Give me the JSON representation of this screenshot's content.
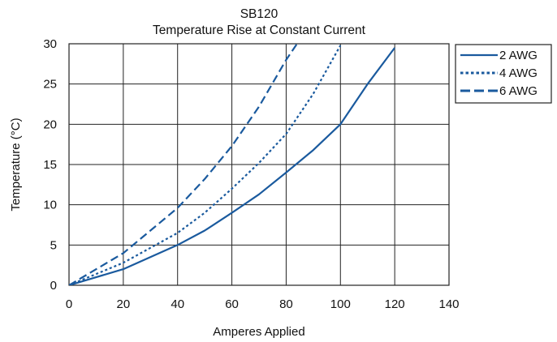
{
  "chart_data": {
    "type": "line",
    "title": "SB120",
    "subtitle": "Temperature Rise at Constant Current",
    "xlabel": "Amperes Applied",
    "ylabel": "Temperature (°C)",
    "xlim": [
      0,
      140
    ],
    "ylim": [
      0,
      30
    ],
    "x_ticks": [
      0,
      20,
      40,
      60,
      80,
      100,
      120,
      140
    ],
    "y_ticks": [
      0,
      5,
      10,
      15,
      20,
      25,
      30
    ],
    "grid": true,
    "legend_position": "right",
    "line_color": "#1a5a9e",
    "series": [
      {
        "name": "2 AWG",
        "dash": "solid",
        "x": [
          0,
          20,
          40,
          50,
          60,
          70,
          80,
          90,
          100,
          110,
          120
        ],
        "y": [
          0,
          2,
          5,
          6.8,
          9,
          11.3,
          14,
          16.8,
          20,
          25,
          29.5
        ]
      },
      {
        "name": "4 AWG",
        "dash": "dotted",
        "x": [
          0,
          20,
          40,
          50,
          60,
          70,
          80,
          90,
          100
        ],
        "y": [
          0,
          2.8,
          6.5,
          9,
          12,
          15.2,
          18.8,
          23.8,
          29.8
        ]
      },
      {
        "name": "6 AWG",
        "dash": "dashed",
        "x": [
          0,
          20,
          40,
          50,
          60,
          70,
          80,
          84
        ],
        "y": [
          0,
          4,
          9.6,
          13.2,
          17.3,
          22.2,
          28,
          30
        ]
      }
    ]
  }
}
